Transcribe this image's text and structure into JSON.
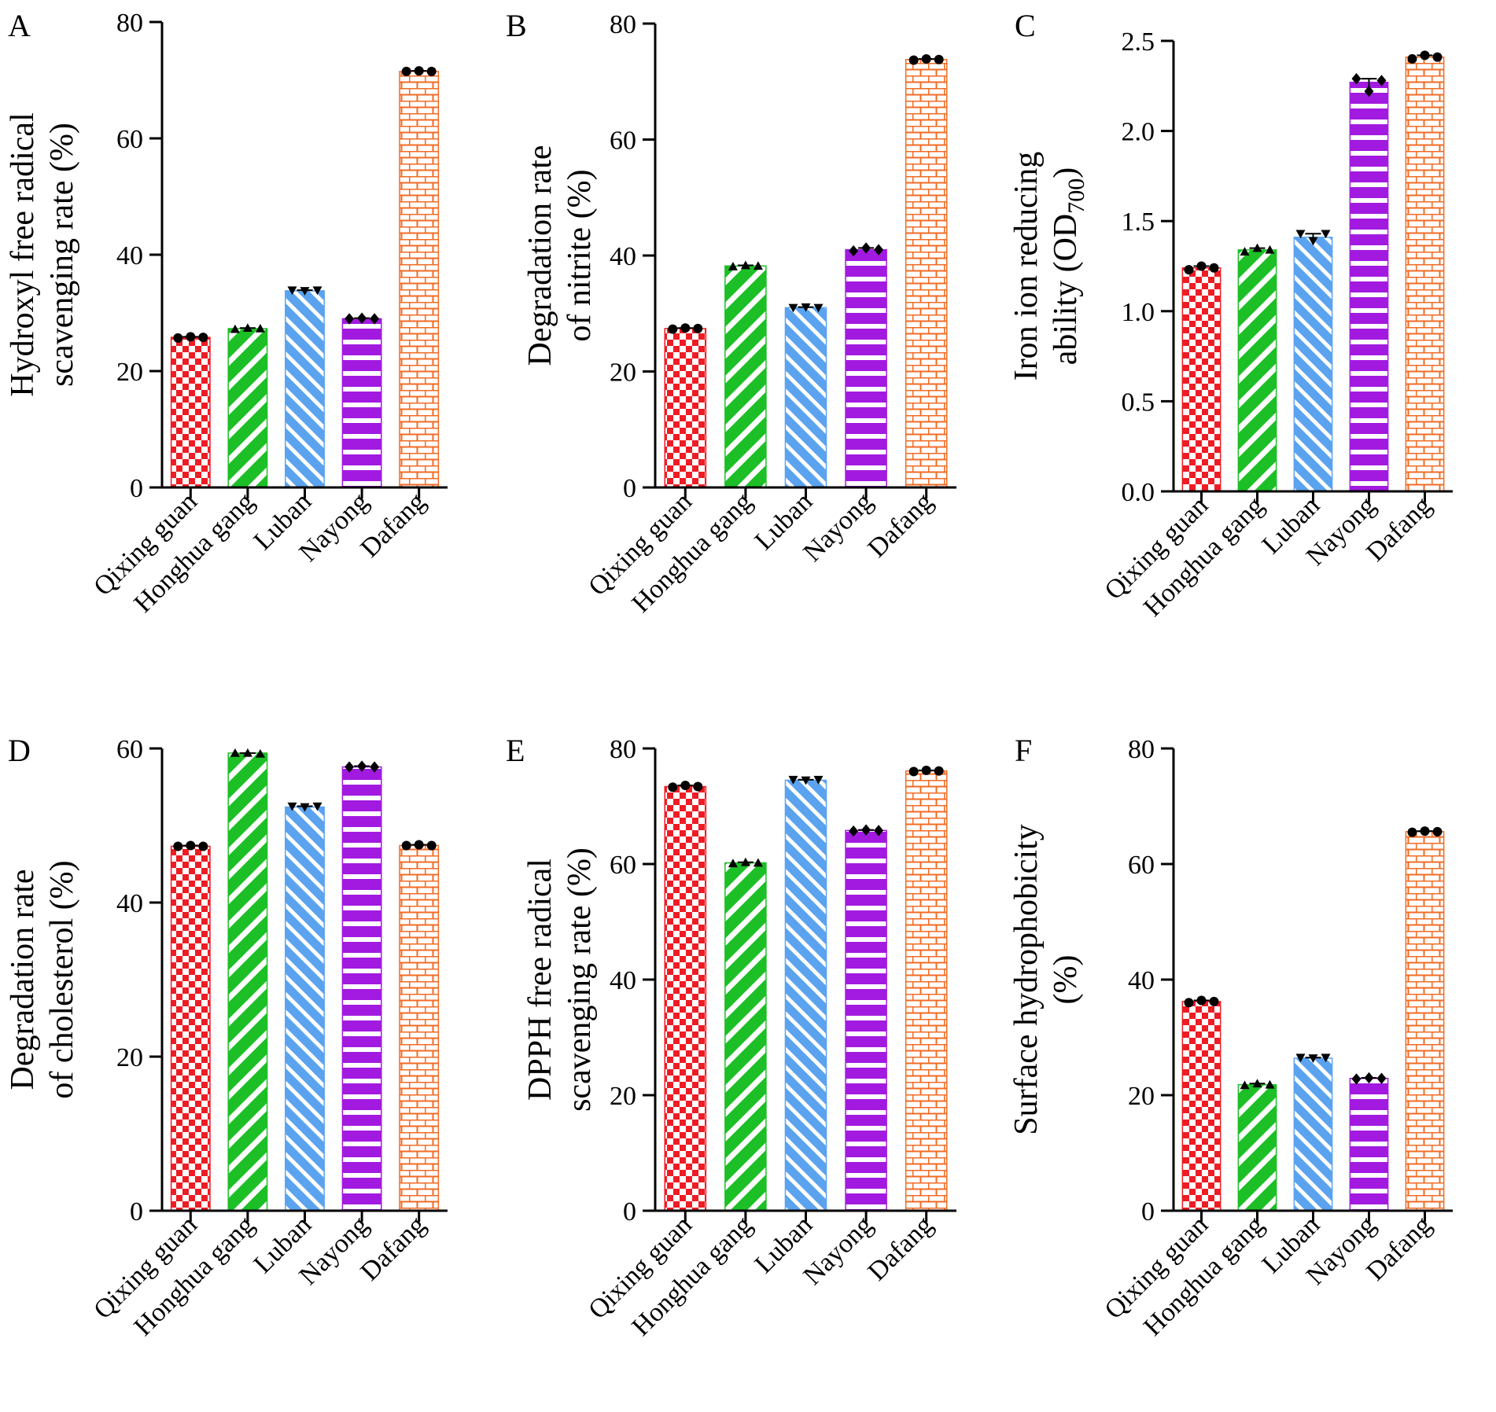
{
  "colors": {
    "qixing": "#ee1c24",
    "honghua": "#1dbf27",
    "luban": "#5ba3ee",
    "nayong": "#a21ae0",
    "dafang": "#f26b24",
    "axis": "#000000"
  },
  "chart_data": [
    {
      "panel": "A",
      "type": "bar",
      "ylabel_lines": [
        "Hydroxyl free radical",
        "scavenging rate (%)"
      ],
      "categories": [
        "Qixing guan",
        "Honghua gang",
        "Luban",
        "Nayong",
        "Dafang"
      ],
      "values": [
        25.8,
        27.3,
        33.8,
        29.0,
        71.5
      ],
      "points": [
        [
          25.7,
          25.9,
          25.8
        ],
        [
          27.2,
          27.4,
          27.3
        ],
        [
          33.9,
          33.8,
          33.9
        ],
        [
          29.0,
          29.1,
          29.0
        ],
        [
          71.5,
          71.6,
          71.5
        ]
      ],
      "ylim": [
        0,
        80
      ],
      "yticks": [
        "0",
        "20",
        "40",
        "60",
        "80"
      ]
    },
    {
      "panel": "B",
      "type": "bar",
      "ylabel_lines": [
        "Degradation rate",
        "of nitrite (%)"
      ],
      "categories": [
        "Qixing guan",
        "Honghua gang",
        "Luban",
        "Nayong",
        "Dafang"
      ],
      "values": [
        27.4,
        38.2,
        31.0,
        41.0,
        73.8
      ],
      "points": [
        [
          27.3,
          27.5,
          27.4
        ],
        [
          38.1,
          38.3,
          38.2
        ],
        [
          31.0,
          31.1,
          31.0
        ],
        [
          40.8,
          41.3,
          41.0
        ],
        [
          73.7,
          73.9,
          73.8
        ]
      ],
      "ylim": [
        0,
        80
      ],
      "yticks": [
        "0",
        "20",
        "40",
        "60",
        "80"
      ]
    },
    {
      "panel": "C",
      "type": "bar",
      "ylabel_lines": [
        "Iron ion reducing",
        "ability (OD",
        "700",
        ")"
      ],
      "categories": [
        "Qixing guan",
        "Honghua gang",
        "Luban",
        "Nayong",
        "Dafang"
      ],
      "values": [
        1.24,
        1.34,
        1.41,
        2.27,
        2.41
      ],
      "points": [
        [
          1.23,
          1.25,
          1.24
        ],
        [
          1.33,
          1.35,
          1.34
        ],
        [
          1.43,
          1.39,
          1.43
        ],
        [
          2.29,
          2.22,
          2.28
        ],
        [
          2.4,
          2.42,
          2.41
        ]
      ],
      "ylim": [
        0,
        2.5
      ],
      "yticks": [
        "0.0",
        "0.5",
        "1.0",
        "1.5",
        "2.0",
        "2.5"
      ]
    },
    {
      "panel": "D",
      "type": "bar",
      "ylabel_lines": [
        "Degradation rate",
        "of cholesterol (%)"
      ],
      "categories": [
        "Qixing guan",
        "Honghua gang",
        "Luban",
        "Nayong",
        "Dafang"
      ],
      "values": [
        47.3,
        59.4,
        52.4,
        57.6,
        47.4
      ],
      "points": [
        [
          47.3,
          47.4,
          47.3
        ],
        [
          59.4,
          59.4,
          59.3
        ],
        [
          52.5,
          52.4,
          52.5
        ],
        [
          57.6,
          57.7,
          57.6
        ],
        [
          47.4,
          47.5,
          47.4
        ]
      ],
      "ylim": [
        0,
        60
      ],
      "yticks": [
        "0",
        "20",
        "40",
        "60"
      ]
    },
    {
      "panel": "E",
      "type": "bar",
      "ylabel_lines": [
        "DPPH free radical",
        "scavenging rate (%)"
      ],
      "categories": [
        "Qixing guan",
        "Honghua gang",
        "Luban",
        "Nayong",
        "Dafang"
      ],
      "values": [
        73.4,
        60.2,
        74.5,
        65.8,
        76.1
      ],
      "points": [
        [
          73.3,
          73.6,
          73.4
        ],
        [
          60.1,
          60.3,
          60.2
        ],
        [
          74.6,
          74.5,
          74.6
        ],
        [
          65.7,
          65.9,
          65.8
        ],
        [
          76.0,
          76.2,
          76.1
        ]
      ],
      "ylim": [
        0,
        80
      ],
      "yticks": [
        "0",
        "20",
        "40",
        "60",
        "80"
      ]
    },
    {
      "panel": "F",
      "type": "bar",
      "ylabel_lines": [
        "Surface hydrophobicity",
        "(%)"
      ],
      "categories": [
        "Qixing guan",
        "Honghua gang",
        "Luban",
        "Nayong",
        "Dafang"
      ],
      "values": [
        36.2,
        21.8,
        26.4,
        22.9,
        65.6
      ],
      "points": [
        [
          36.0,
          36.4,
          36.2
        ],
        [
          21.7,
          22.0,
          21.8
        ],
        [
          26.5,
          26.4,
          26.5
        ],
        [
          22.8,
          23.0,
          22.9
        ],
        [
          65.5,
          65.7,
          65.6
        ]
      ],
      "ylim": [
        0,
        80
      ],
      "yticks": [
        "0",
        "20",
        "40",
        "60",
        "80"
      ]
    }
  ]
}
